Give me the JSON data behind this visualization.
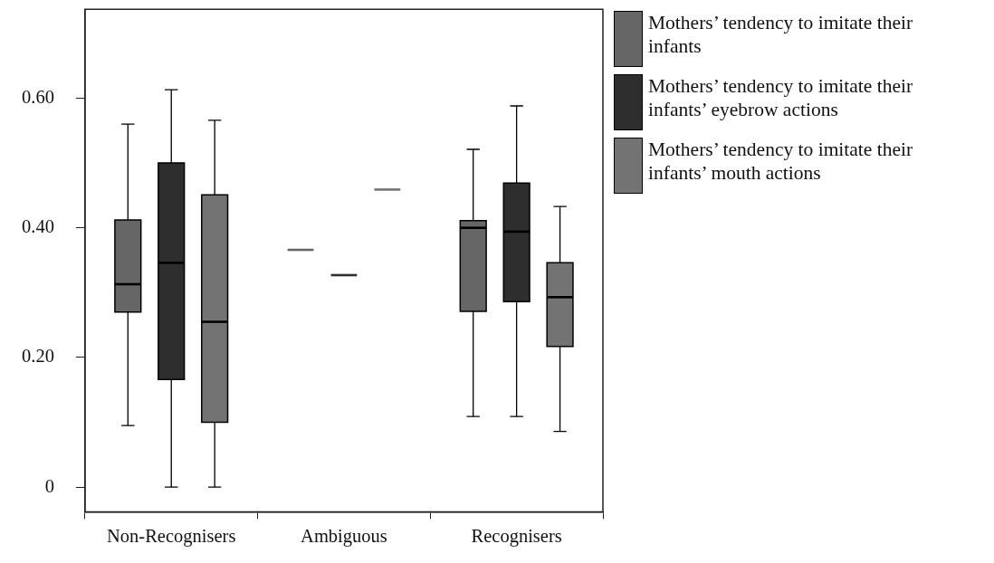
{
  "chart_data": {
    "type": "box",
    "categories": [
      "Non-Recognisers",
      "Ambiguous",
      "Recognisers"
    ],
    "ylim": [
      -0.038,
      0.737
    ],
    "yticks": [
      0,
      {
        "value": 0.2,
        "label": "0.20"
      },
      {
        "value": 0.4,
        "label": "0.40"
      },
      {
        "value": 0.6,
        "label": "0.60"
      }
    ],
    "grid": false,
    "legend": "top right",
    "series": [
      {
        "name": "Mothers’ tendency to imitate their infants",
        "color": "#666666",
        "boxes": [
          {
            "low": 0.095,
            "q1": 0.27,
            "median": 0.313,
            "q3": 0.412,
            "high": 0.56
          },
          {
            "low": 0.366,
            "q1": 0.366,
            "median": 0.366,
            "q3": 0.366,
            "high": 0.366
          },
          {
            "low": 0.109,
            "q1": 0.271,
            "median": 0.4,
            "q3": 0.411,
            "high": 0.521
          }
        ]
      },
      {
        "name": "Mothers’ tendency to imitate their infants’ eyebrow actions",
        "color": "#2e2e2e",
        "boxes": [
          {
            "low": 0,
            "q1": 0.166,
            "median": 0.346,
            "q3": 0.5,
            "high": 0.613
          },
          {
            "low": 0.327,
            "q1": 0.327,
            "median": 0.327,
            "q3": 0.327,
            "high": 0.327
          },
          {
            "low": 0.109,
            "q1": 0.286,
            "median": 0.394,
            "q3": 0.469,
            "high": 0.588
          }
        ]
      },
      {
        "name": "Mothers’ tendency to imitate their infants’ mouth actions",
        "color": "#737373",
        "boxes": [
          {
            "low": 0,
            "q1": 0.1,
            "median": 0.255,
            "q3": 0.451,
            "high": 0.566
          },
          {
            "low": 0.459,
            "q1": 0.459,
            "median": 0.459,
            "q3": 0.459,
            "high": 0.459
          },
          {
            "low": 0.086,
            "q1": 0.217,
            "median": 0.293,
            "q3": 0.346,
            "high": 0.433
          }
        ]
      }
    ]
  }
}
